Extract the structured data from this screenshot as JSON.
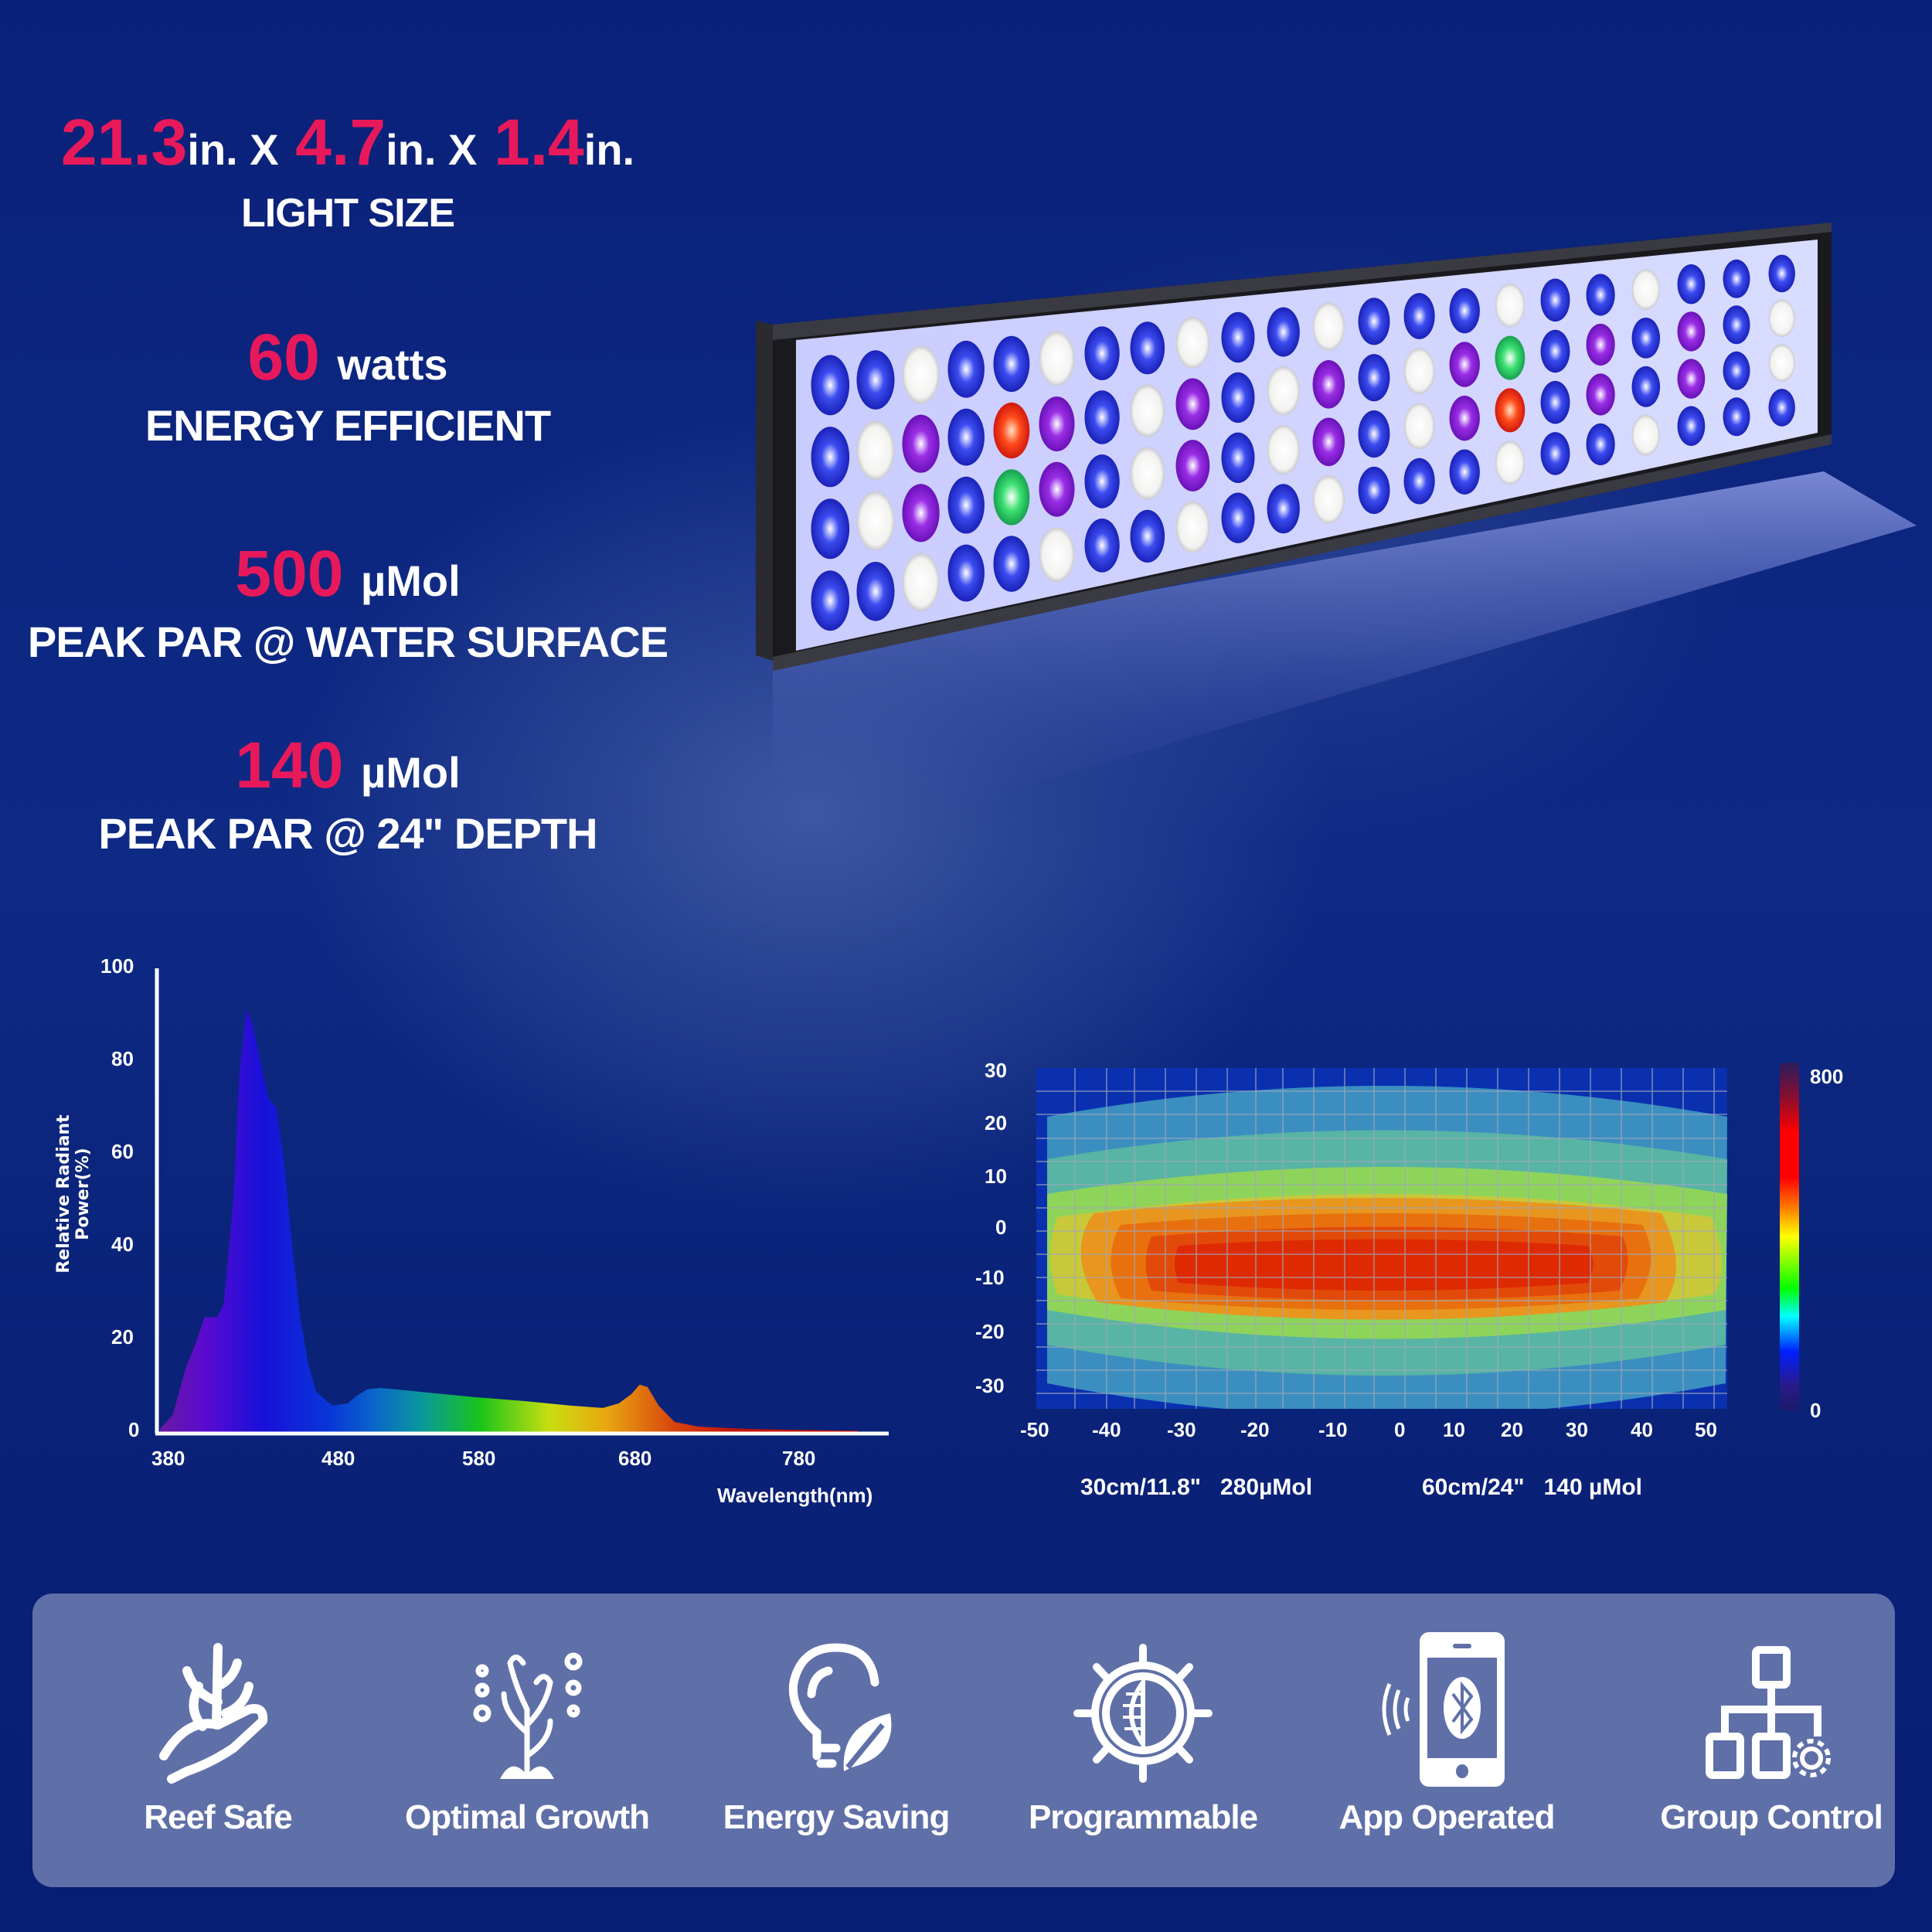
{
  "background": {
    "primary": "#071e74",
    "glow": "#344a8e",
    "accent": "#e8195a",
    "panel": "#5f6fa8"
  },
  "specs": {
    "size": {
      "dims": [
        {
          "value": "21.3",
          "unit": "in. X"
        },
        {
          "value": "4.7",
          "unit": "in. X"
        },
        {
          "value": "1.4",
          "unit": "in."
        }
      ],
      "label": "LIGHT SIZE"
    },
    "power": {
      "value": "60",
      "unit": "watts",
      "label": "ENERGY EFFICIENT"
    },
    "par_surface": {
      "value": "500",
      "unit": "µMol",
      "label": "PEAK PAR @ WATER SURFACE"
    },
    "par_depth": {
      "value": "140",
      "unit": "µMol",
      "label": "PEAK PAR @ 24\" DEPTH"
    }
  },
  "product": {
    "name": "LED aquarium light fixture",
    "led_colors": [
      "royal-blue",
      "white",
      "violet",
      "red",
      "green"
    ]
  },
  "chart_data": [
    {
      "type": "area",
      "title": "",
      "xlabel": "Wavelength(nm)",
      "ylabel": "Relative Radiant Power(%)",
      "xticks": [
        "380",
        "480",
        "580",
        "680",
        "780"
      ],
      "yticks": [
        "0",
        "20",
        "40",
        "60",
        "80",
        "100"
      ],
      "xlim": [
        380,
        820
      ],
      "ylim": [
        0,
        100
      ],
      "grid": false,
      "x": [
        382,
        390,
        398,
        405,
        410,
        418,
        422,
        428,
        432,
        436,
        440,
        445,
        450,
        455,
        460,
        465,
        470,
        475,
        480,
        490,
        500,
        505,
        512,
        520,
        530,
        550,
        580,
        610,
        640,
        660,
        670,
        678,
        683,
        688,
        695,
        705,
        720,
        750,
        780,
        820
      ],
      "values": [
        1,
        4,
        14,
        20,
        25,
        25,
        28,
        50,
        78,
        91,
        88,
        80,
        72,
        70,
        58,
        40,
        25,
        15,
        9,
        6,
        6.5,
        8,
        9.5,
        9.8,
        9.5,
        8.8,
        7.8,
        7,
        6,
        5.5,
        6.5,
        8.5,
        10.5,
        10,
        6,
        2.5,
        1.5,
        1,
        0.8,
        0.6
      ]
    },
    {
      "type": "heatmap",
      "title": "",
      "xlabel": "",
      "ylabel": "",
      "xticks": [
        "-50",
        "-40",
        "-30",
        "-20",
        "-10",
        "0",
        "10",
        "20",
        "30",
        "40",
        "50"
      ],
      "yticks": [
        "30",
        "20",
        "10",
        "0",
        "-10",
        "-20",
        "-30"
      ],
      "xlim": [
        -50,
        50
      ],
      "ylim": [
        -33,
        33
      ],
      "grid": true,
      "colorbar": {
        "min": "0",
        "max": "800",
        "colors": [
          "#2a1a8a",
          "#0020ff",
          "#00e8ff",
          "#00ff00",
          "#ffff00",
          "#ff8000",
          "#ff0000",
          "#8a0e2e",
          "#2a1c5e"
        ]
      },
      "contours": [
        {
          "level": "outer",
          "color": "#3a8fc0"
        },
        {
          "level": "2",
          "color": "#58b4a4"
        },
        {
          "level": "3",
          "color": "#8fd45a"
        },
        {
          "level": "4",
          "color": "#c8c83a"
        },
        {
          "level": "5",
          "color": "#e8961e"
        },
        {
          "level": "6",
          "color": "#e8700e"
        },
        {
          "level": "7",
          "color": "#e24a0a"
        },
        {
          "level": "peak",
          "color": "#de2a02"
        }
      ],
      "annotations": [
        {
          "depth": "30cm/11.8\"",
          "value": "280µMol"
        },
        {
          "depth": "60cm/24\"",
          "value": "140 µMol"
        }
      ]
    }
  ],
  "features": [
    {
      "label": "Reef Safe",
      "icon": "coral-hand-icon"
    },
    {
      "label": "Optimal Growth",
      "icon": "seaweed-icon"
    },
    {
      "label": "Energy Saving",
      "icon": "bulb-leaf-icon"
    },
    {
      "label": "Programmable",
      "icon": "dial-icon"
    },
    {
      "label": "App Operated",
      "icon": "bluetooth-phone-icon"
    },
    {
      "label": "Group Control",
      "icon": "network-gear-icon"
    }
  ]
}
